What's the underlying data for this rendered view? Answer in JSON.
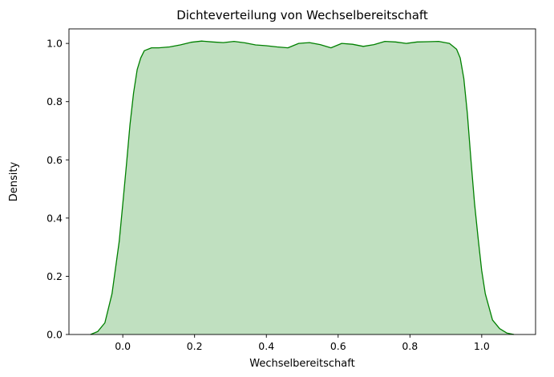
{
  "chart_data": {
    "type": "area",
    "title": "Dichteverteilung von Wechselbereitschaft",
    "xlabel": "Wechselbereitschaft",
    "ylabel": "Density",
    "xlim": [
      -0.15,
      1.15
    ],
    "ylim": [
      0.0,
      1.05
    ],
    "xticks": [
      0.0,
      0.2,
      0.4,
      0.6,
      0.8,
      1.0
    ],
    "xtick_labels": [
      "0.0",
      "0.2",
      "0.4",
      "0.6",
      "0.8",
      "1.0"
    ],
    "yticks": [
      0.0,
      0.2,
      0.4,
      0.6,
      0.8,
      1.0
    ],
    "ytick_labels": [
      "0.0",
      "0.2",
      "0.4",
      "0.6",
      "0.8",
      "1.0"
    ],
    "grid": false,
    "legend": "none",
    "line_color": "#008000",
    "fill_color": "#c0e0c0",
    "series": [
      {
        "x": [
          -0.09,
          -0.07,
          -0.05,
          -0.03,
          -0.01,
          0.0,
          0.01,
          0.02,
          0.03,
          0.04,
          0.05,
          0.06,
          0.08,
          0.1,
          0.13,
          0.16,
          0.19,
          0.22,
          0.25,
          0.28,
          0.31,
          0.34,
          0.37,
          0.4,
          0.43,
          0.46,
          0.49,
          0.52,
          0.55,
          0.58,
          0.61,
          0.64,
          0.67,
          0.7,
          0.73,
          0.76,
          0.79,
          0.82,
          0.85,
          0.88,
          0.91,
          0.93,
          0.94,
          0.95,
          0.96,
          0.97,
          0.98,
          0.99,
          1.0,
          1.01,
          1.03,
          1.05,
          1.07,
          1.09
        ],
        "y": [
          0.0,
          0.01,
          0.04,
          0.14,
          0.32,
          0.45,
          0.58,
          0.72,
          0.83,
          0.91,
          0.95,
          0.975,
          0.985,
          0.985,
          0.988,
          0.995,
          1.004,
          1.008,
          1.005,
          1.003,
          1.007,
          1.002,
          0.995,
          0.992,
          0.988,
          0.985,
          1.0,
          1.003,
          0.996,
          0.985,
          1.0,
          0.997,
          0.99,
          0.996,
          1.007,
          1.005,
          1.0,
          1.005,
          1.006,
          1.007,
          1.0,
          0.98,
          0.95,
          0.88,
          0.76,
          0.6,
          0.45,
          0.33,
          0.22,
          0.14,
          0.05,
          0.02,
          0.005,
          0.0
        ]
      }
    ]
  }
}
